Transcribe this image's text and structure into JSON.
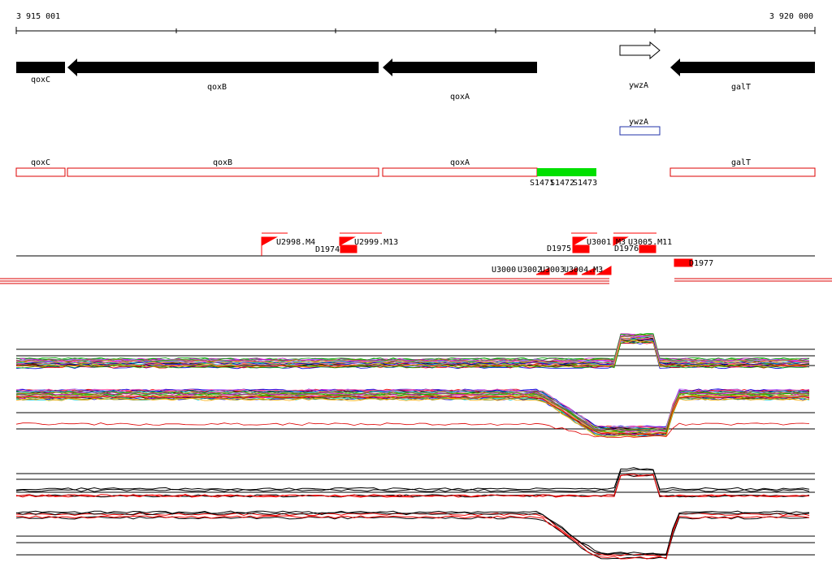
{
  "ruler": {
    "start": "3 915 001",
    "end": "3 920 000"
  },
  "genes": {
    "qoxC": "qoxC",
    "qoxB": "qoxB",
    "qoxA": "qoxA",
    "ywzA": "ywzA",
    "galT": "galT"
  },
  "track2": {
    "ywzA": "ywzA"
  },
  "track3": {
    "qoxC": "qoxC",
    "qoxB": "qoxB",
    "qoxA": "qoxA",
    "galT": "galT"
  },
  "segments": [
    "S1471",
    "S1472",
    "S1473"
  ],
  "features": {
    "u2998": "U2998.M4",
    "d1974": "D1974",
    "u2999": "U2999.M13",
    "d1975": "D1975",
    "u3001": "U3001",
    "m3": "M3",
    "u3005": "U3005.M11",
    "d1976": "D1976",
    "u3000": "U3000",
    "u3002": "U3002",
    "u3003": "U3003",
    "u3004": "U3004.M3",
    "d1977": "D1977"
  }
}
